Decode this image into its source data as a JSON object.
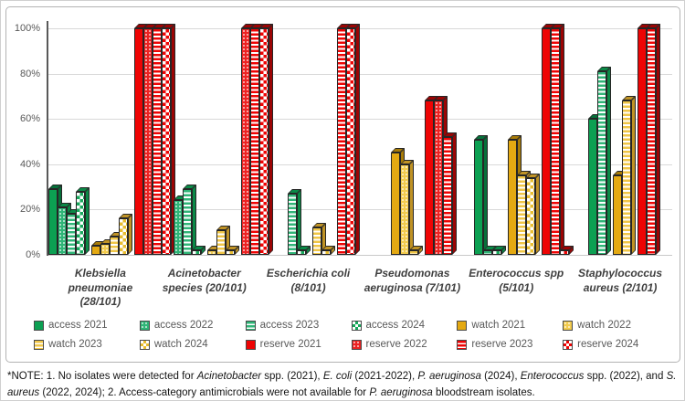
{
  "chart_data": {
    "type": "bar",
    "title": "",
    "xlabel": "",
    "ylabel": "",
    "ylim": [
      0,
      100
    ],
    "grid": true,
    "legend_position": "bottom",
    "yticks": [
      {
        "label": "0%",
        "value": 0
      },
      {
        "label": "20%",
        "value": 20
      },
      {
        "label": "40%",
        "value": 40
      },
      {
        "label": "60%",
        "value": 60
      },
      {
        "label": "80%",
        "value": 80
      },
      {
        "label": "100%",
        "value": 100
      }
    ],
    "categories": [
      "Klebsiella pneumoniae (28/101)",
      "Acinetobacter species (20/101)",
      "Escherichia coli (8/101)",
      "Pseudomonas aeruginosa (7/101)",
      "Enterococcus spp (5/101)",
      "Staphylococcus aureus (2/101)"
    ],
    "category_lines": [
      [
        "Klebsiella",
        "pneumoniae",
        "(28/101)"
      ],
      [
        "Acinetobacter",
        "species (20/101)"
      ],
      [
        "Escherichia coli",
        "(8/101)"
      ],
      [
        "Pseudomonas",
        "aeruginosa (7/101)"
      ],
      [
        "Enterococcus spp",
        "(5/101)"
      ],
      [
        "Staphylococcus",
        "aureus (2/101)"
      ]
    ],
    "series": [
      {
        "name": "access 2021",
        "values": [
          29,
          null,
          null,
          null,
          51,
          60
        ]
      },
      {
        "name": "access 2022",
        "values": [
          21,
          24,
          null,
          null,
          null,
          null
        ]
      },
      {
        "name": "access 2023",
        "values": [
          18,
          29,
          27,
          null,
          2,
          81
        ]
      },
      {
        "name": "access 2024",
        "values": [
          28,
          2,
          2,
          null,
          2,
          null
        ]
      },
      {
        "name": "watch 2021",
        "values": [
          4,
          null,
          null,
          45,
          51,
          35
        ]
      },
      {
        "name": "watch 2022",
        "values": [
          5,
          2,
          null,
          40,
          null,
          null
        ]
      },
      {
        "name": "watch 2023",
        "values": [
          8,
          11,
          12,
          2,
          35,
          68
        ]
      },
      {
        "name": "watch 2024",
        "values": [
          16,
          2,
          2,
          null,
          34,
          null
        ]
      },
      {
        "name": "reserve 2021",
        "values": [
          100,
          null,
          null,
          68,
          100,
          100
        ]
      },
      {
        "name": "reserve 2022",
        "values": [
          100,
          100,
          null,
          68,
          null,
          null
        ]
      },
      {
        "name": "reserve 2023",
        "values": [
          100,
          100,
          100,
          52,
          100,
          100
        ]
      },
      {
        "name": "reserve 2024",
        "values": [
          100,
          100,
          100,
          null,
          2,
          null
        ]
      }
    ]
  },
  "series_styles": {
    "access 2021": {
      "pattern": "solid",
      "color": "#0CA052",
      "dark": "#06703A"
    },
    "access 2022": {
      "pattern": "dots",
      "color": "#2FB577",
      "dark": "#0A8A47"
    },
    "access 2023": {
      "pattern": "hstripe",
      "color": "#2FB577",
      "dark": "#0A8A47"
    },
    "access 2024": {
      "pattern": "checker",
      "color": "#17A95C",
      "dark": "#0A8A47"
    },
    "watch 2021": {
      "pattern": "solid",
      "color": "#E4A912",
      "dark": "#A87C08"
    },
    "watch 2022": {
      "pattern": "dots",
      "color": "#F2CB4E",
      "dark": "#C09325"
    },
    "watch 2023": {
      "pattern": "hstripe",
      "color": "#F0C646",
      "dark": "#C09325"
    },
    "watch 2024": {
      "pattern": "checker",
      "color": "#E9BD2F",
      "dark": "#C09325"
    },
    "reserve 2021": {
      "pattern": "solid",
      "color": "#EE0404",
      "dark": "#9C0404"
    },
    "reserve 2022": {
      "pattern": "dots",
      "color": "#EC2222",
      "dark": "#9C0404"
    },
    "reserve 2023": {
      "pattern": "hstripe",
      "color": "#EE0404",
      "dark": "#9C0404"
    },
    "reserve 2024": {
      "pattern": "checker",
      "color": "#EE0404",
      "dark": "#9C0404"
    }
  },
  "colors": {
    "gridline": "#D9D9D9",
    "axis": "#595959",
    "bar_outline": "#262626",
    "tick_label": "#595959",
    "category_label": "#3F3F3F",
    "legend_label": "#595959",
    "frame_border": "#B3B3B3",
    "note_text": "#141414",
    "background": "#FFFFFF"
  },
  "note": {
    "segments": [
      {
        "text": "*NOTE: 1. No isolates were detected for ",
        "italic": false
      },
      {
        "text": "Acinetobacter",
        "italic": true
      },
      {
        "text": " spp. (2021), ",
        "italic": false
      },
      {
        "text": "E. coli",
        "italic": true
      },
      {
        "text": " (2021-2022), ",
        "italic": false
      },
      {
        "text": "P. aeruginosa",
        "italic": true
      },
      {
        "text": " (2024), ",
        "italic": false
      },
      {
        "text": "Enterococcus",
        "italic": true
      },
      {
        "text": " spp. (2022), and ",
        "italic": false
      },
      {
        "text": "S. aureus",
        "italic": true
      },
      {
        "text": " (2022, 2024); 2. Access-category antimicrobials were not available for ",
        "italic": false
      },
      {
        "text": "P. aeruginosa",
        "italic": true
      },
      {
        "text": " bloodstream isolates.",
        "italic": false
      }
    ]
  }
}
